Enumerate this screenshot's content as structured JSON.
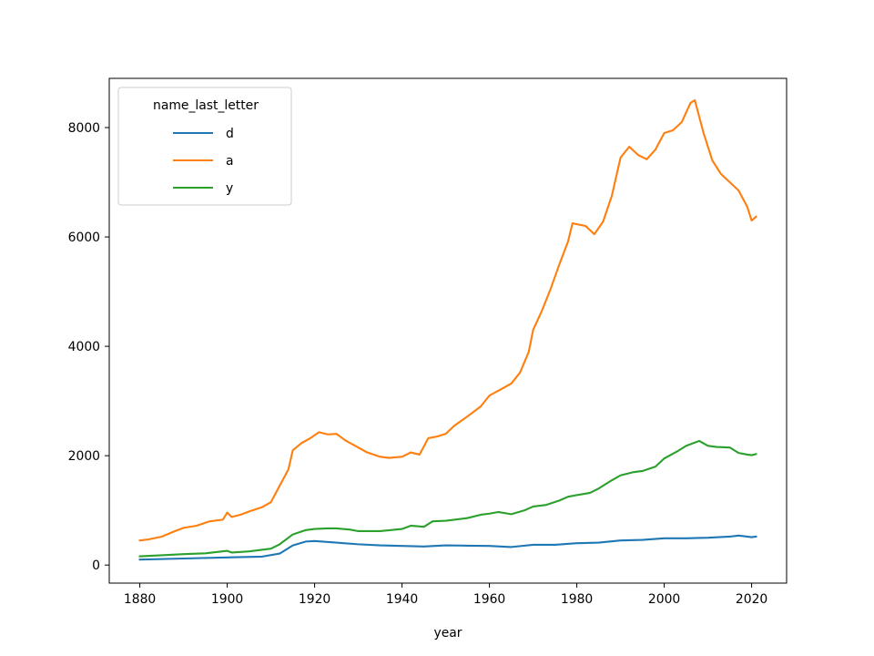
{
  "chart_data": {
    "type": "line",
    "title": "",
    "xlabel": "year",
    "ylabel": "",
    "xlim": [
      1873,
      2028
    ],
    "ylim": [
      -330,
      8900
    ],
    "xticks": [
      1880,
      1900,
      1920,
      1940,
      1960,
      1980,
      2000,
      2020
    ],
    "yticks": [
      0,
      2000,
      4000,
      6000,
      8000
    ],
    "grid": false,
    "legend": {
      "title": "name_last_letter",
      "position": "top-left"
    },
    "series": [
      {
        "name": "d",
        "color": "#1f77b4",
        "points": [
          [
            1880,
            100
          ],
          [
            1890,
            120
          ],
          [
            1900,
            140
          ],
          [
            1908,
            155
          ],
          [
            1912,
            210
          ],
          [
            1915,
            360
          ],
          [
            1918,
            430
          ],
          [
            1920,
            440
          ],
          [
            1925,
            410
          ],
          [
            1930,
            380
          ],
          [
            1935,
            360
          ],
          [
            1940,
            350
          ],
          [
            1945,
            340
          ],
          [
            1950,
            360
          ],
          [
            1955,
            355
          ],
          [
            1960,
            350
          ],
          [
            1965,
            330
          ],
          [
            1970,
            370
          ],
          [
            1975,
            370
          ],
          [
            1980,
            400
          ],
          [
            1985,
            410
          ],
          [
            1990,
            450
          ],
          [
            1995,
            460
          ],
          [
            2000,
            490
          ],
          [
            2005,
            490
          ],
          [
            2010,
            500
          ],
          [
            2015,
            520
          ],
          [
            2017,
            540
          ],
          [
            2020,
            510
          ],
          [
            2021,
            520
          ]
        ]
      },
      {
        "name": "a",
        "color": "#ff7f0e",
        "points": [
          [
            1880,
            450
          ],
          [
            1882,
            470
          ],
          [
            1885,
            520
          ],
          [
            1888,
            620
          ],
          [
            1890,
            680
          ],
          [
            1893,
            720
          ],
          [
            1896,
            800
          ],
          [
            1898,
            820
          ],
          [
            1899,
            830
          ],
          [
            1900,
            960
          ],
          [
            1901,
            880
          ],
          [
            1903,
            920
          ],
          [
            1905,
            980
          ],
          [
            1908,
            1060
          ],
          [
            1910,
            1150
          ],
          [
            1912,
            1450
          ],
          [
            1914,
            1750
          ],
          [
            1915,
            2100
          ],
          [
            1917,
            2230
          ],
          [
            1919,
            2320
          ],
          [
            1921,
            2430
          ],
          [
            1923,
            2390
          ],
          [
            1925,
            2400
          ],
          [
            1927,
            2280
          ],
          [
            1930,
            2150
          ],
          [
            1932,
            2060
          ],
          [
            1935,
            1980
          ],
          [
            1937,
            1960
          ],
          [
            1940,
            1980
          ],
          [
            1942,
            2060
          ],
          [
            1944,
            2020
          ],
          [
            1946,
            2320
          ],
          [
            1948,
            2350
          ],
          [
            1950,
            2400
          ],
          [
            1952,
            2550
          ],
          [
            1955,
            2720
          ],
          [
            1958,
            2900
          ],
          [
            1960,
            3100
          ],
          [
            1963,
            3230
          ],
          [
            1965,
            3320
          ],
          [
            1967,
            3520
          ],
          [
            1969,
            3900
          ],
          [
            1970,
            4300
          ],
          [
            1972,
            4650
          ],
          [
            1974,
            5050
          ],
          [
            1976,
            5500
          ],
          [
            1978,
            5920
          ],
          [
            1979,
            6250
          ],
          [
            1982,
            6200
          ],
          [
            1984,
            6050
          ],
          [
            1986,
            6280
          ],
          [
            1988,
            6750
          ],
          [
            1990,
            7450
          ],
          [
            1992,
            7650
          ],
          [
            1994,
            7500
          ],
          [
            1996,
            7420
          ],
          [
            1998,
            7600
          ],
          [
            2000,
            7900
          ],
          [
            2002,
            7950
          ],
          [
            2004,
            8100
          ],
          [
            2006,
            8450
          ],
          [
            2007,
            8500
          ],
          [
            2009,
            7900
          ],
          [
            2011,
            7400
          ],
          [
            2013,
            7150
          ],
          [
            2015,
            7000
          ],
          [
            2017,
            6850
          ],
          [
            2019,
            6550
          ],
          [
            2020,
            6300
          ],
          [
            2021,
            6370
          ]
        ]
      },
      {
        "name": "y",
        "color": "#2ca02c",
        "points": [
          [
            1880,
            160
          ],
          [
            1885,
            180
          ],
          [
            1890,
            200
          ],
          [
            1895,
            215
          ],
          [
            1900,
            260
          ],
          [
            1901,
            230
          ],
          [
            1905,
            250
          ],
          [
            1910,
            300
          ],
          [
            1912,
            380
          ],
          [
            1915,
            560
          ],
          [
            1918,
            640
          ],
          [
            1920,
            660
          ],
          [
            1923,
            670
          ],
          [
            1925,
            670
          ],
          [
            1928,
            650
          ],
          [
            1930,
            620
          ],
          [
            1935,
            620
          ],
          [
            1940,
            660
          ],
          [
            1942,
            720
          ],
          [
            1945,
            700
          ],
          [
            1947,
            800
          ],
          [
            1950,
            810
          ],
          [
            1955,
            860
          ],
          [
            1958,
            920
          ],
          [
            1960,
            940
          ],
          [
            1962,
            970
          ],
          [
            1965,
            930
          ],
          [
            1968,
            1000
          ],
          [
            1970,
            1070
          ],
          [
            1973,
            1100
          ],
          [
            1976,
            1180
          ],
          [
            1978,
            1250
          ],
          [
            1980,
            1280
          ],
          [
            1983,
            1320
          ],
          [
            1985,
            1400
          ],
          [
            1988,
            1550
          ],
          [
            1990,
            1640
          ],
          [
            1993,
            1700
          ],
          [
            1995,
            1720
          ],
          [
            1998,
            1800
          ],
          [
            2000,
            1950
          ],
          [
            2003,
            2080
          ],
          [
            2005,
            2180
          ],
          [
            2007,
            2240
          ],
          [
            2008,
            2270
          ],
          [
            2010,
            2180
          ],
          [
            2012,
            2160
          ],
          [
            2015,
            2150
          ],
          [
            2017,
            2050
          ],
          [
            2019,
            2020
          ],
          [
            2020,
            2010
          ],
          [
            2021,
            2030
          ]
        ]
      }
    ]
  }
}
